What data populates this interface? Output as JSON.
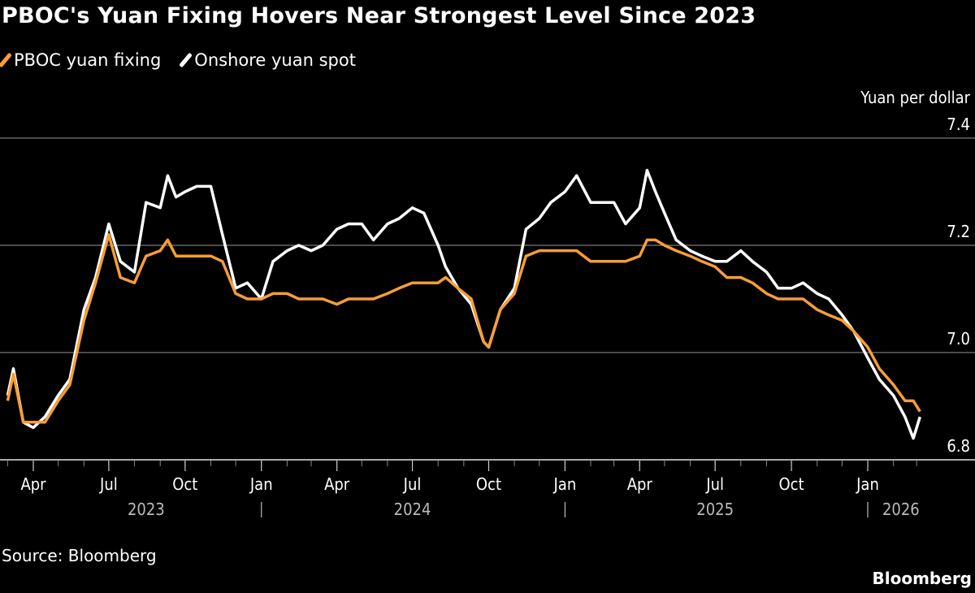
{
  "title": "PBOC's Yuan Fixing Hovers Near Strongest Level Since 2023",
  "source": "Source: Bloomberg",
  "logo": "Bloomberg",
  "chart_data": {
    "type": "line",
    "title": "PBOC's Yuan Fixing Hovers Near Strongest Level Since 2023",
    "ylabel": "Yuan per dollar",
    "ylim": [
      6.8,
      7.4
    ],
    "yticks": [
      "7.4",
      "7.2",
      "7.0",
      "6.8"
    ],
    "xlim": [
      "2023-02-25",
      "2026-03-20"
    ],
    "xticks": [
      {
        "date": "2023-04-01",
        "label": "Apr"
      },
      {
        "date": "2023-07-01",
        "label": "Jul"
      },
      {
        "date": "2023-10-01",
        "label": "Oct"
      },
      {
        "date": "2024-01-01",
        "label": "Jan"
      },
      {
        "date": "2024-04-01",
        "label": "Apr"
      },
      {
        "date": "2024-07-01",
        "label": "Jul"
      },
      {
        "date": "2024-10-01",
        "label": "Oct"
      },
      {
        "date": "2025-01-01",
        "label": "Jan"
      },
      {
        "date": "2025-04-01",
        "label": "Apr"
      },
      {
        "date": "2025-07-01",
        "label": "Jul"
      },
      {
        "date": "2025-10-01",
        "label": "Oct"
      },
      {
        "date": "2026-01-01",
        "label": "Jan"
      }
    ],
    "years": [
      {
        "label": "2023",
        "date": "2023-08-15"
      },
      {
        "label": "2024",
        "date": "2024-07-01"
      },
      {
        "label": "2025",
        "date": "2025-07-01"
      },
      {
        "label": "2026",
        "date": "2026-02-10"
      }
    ],
    "year_separators": [
      "2024-01-01",
      "2025-01-01",
      "2026-01-01"
    ],
    "grid": true,
    "legend_placement": "top-left",
    "x": [
      "2023-03-01",
      "2023-03-08",
      "2023-03-20",
      "2023-04-01",
      "2023-04-15",
      "2023-05-01",
      "2023-05-15",
      "2023-06-01",
      "2023-06-15",
      "2023-07-01",
      "2023-07-15",
      "2023-08-01",
      "2023-08-15",
      "2023-09-01",
      "2023-09-10",
      "2023-09-20",
      "2023-10-01",
      "2023-10-15",
      "2023-11-01",
      "2023-11-15",
      "2023-12-01",
      "2023-12-15",
      "2024-01-01",
      "2024-01-15",
      "2024-02-01",
      "2024-02-15",
      "2024-03-01",
      "2024-03-15",
      "2024-04-01",
      "2024-04-15",
      "2024-05-01",
      "2024-05-15",
      "2024-06-01",
      "2024-06-15",
      "2024-07-01",
      "2024-07-15",
      "2024-08-01",
      "2024-08-10",
      "2024-08-25",
      "2024-09-10",
      "2024-09-25",
      "2024-10-01",
      "2024-10-15",
      "2024-11-01",
      "2024-11-15",
      "2024-12-01",
      "2024-12-15",
      "2025-01-01",
      "2025-01-15",
      "2025-02-01",
      "2025-02-15",
      "2025-03-01",
      "2025-03-15",
      "2025-04-01",
      "2025-04-10",
      "2025-04-20",
      "2025-05-01",
      "2025-05-15",
      "2025-06-01",
      "2025-06-15",
      "2025-07-01",
      "2025-07-15",
      "2025-08-01",
      "2025-08-15",
      "2025-09-01",
      "2025-09-15",
      "2025-10-01",
      "2025-10-15",
      "2025-11-01",
      "2025-11-15",
      "2025-12-01",
      "2025-12-15",
      "2026-01-01",
      "2026-01-15",
      "2026-02-01",
      "2026-02-15",
      "2026-02-25",
      "2026-03-05"
    ],
    "series": [
      {
        "name": "PBOC yuan fixing",
        "color": "#f89d36",
        "values": [
          6.91,
          6.96,
          6.87,
          6.87,
          6.87,
          6.91,
          6.94,
          7.06,
          7.13,
          7.22,
          7.14,
          7.13,
          7.18,
          7.19,
          7.21,
          7.18,
          7.18,
          7.18,
          7.18,
          7.17,
          7.11,
          7.1,
          7.1,
          7.11,
          7.11,
          7.1,
          7.1,
          7.1,
          7.09,
          7.1,
          7.1,
          7.1,
          7.11,
          7.12,
          7.13,
          7.13,
          7.13,
          7.14,
          7.12,
          7.1,
          7.02,
          7.01,
          7.08,
          7.11,
          7.18,
          7.19,
          7.19,
          7.19,
          7.19,
          7.17,
          7.17,
          7.17,
          7.17,
          7.18,
          7.21,
          7.21,
          7.2,
          7.19,
          7.18,
          7.17,
          7.16,
          7.14,
          7.14,
          7.13,
          7.11,
          7.1,
          7.1,
          7.1,
          7.08,
          7.07,
          7.06,
          7.04,
          7.01,
          6.97,
          6.94,
          6.91,
          6.91,
          6.89
        ]
      },
      {
        "name": "Onshore yuan spot",
        "color": "#ffffff",
        "values": [
          6.92,
          6.97,
          6.87,
          6.86,
          6.88,
          6.92,
          6.95,
          7.08,
          7.14,
          7.24,
          7.17,
          7.15,
          7.28,
          7.27,
          7.33,
          7.29,
          7.3,
          7.31,
          7.31,
          7.22,
          7.12,
          7.13,
          7.1,
          7.17,
          7.19,
          7.2,
          7.19,
          7.2,
          7.23,
          7.24,
          7.24,
          7.21,
          7.24,
          7.25,
          7.27,
          7.26,
          7.2,
          7.16,
          7.12,
          7.09,
          7.02,
          7.01,
          7.08,
          7.12,
          7.23,
          7.25,
          7.28,
          7.3,
          7.33,
          7.28,
          7.28,
          7.28,
          7.24,
          7.27,
          7.34,
          7.3,
          7.26,
          7.21,
          7.19,
          7.18,
          7.17,
          7.17,
          7.19,
          7.17,
          7.15,
          7.12,
          7.12,
          7.13,
          7.11,
          7.1,
          7.07,
          7.04,
          6.99,
          6.95,
          6.92,
          6.88,
          6.84,
          6.88
        ]
      }
    ]
  }
}
